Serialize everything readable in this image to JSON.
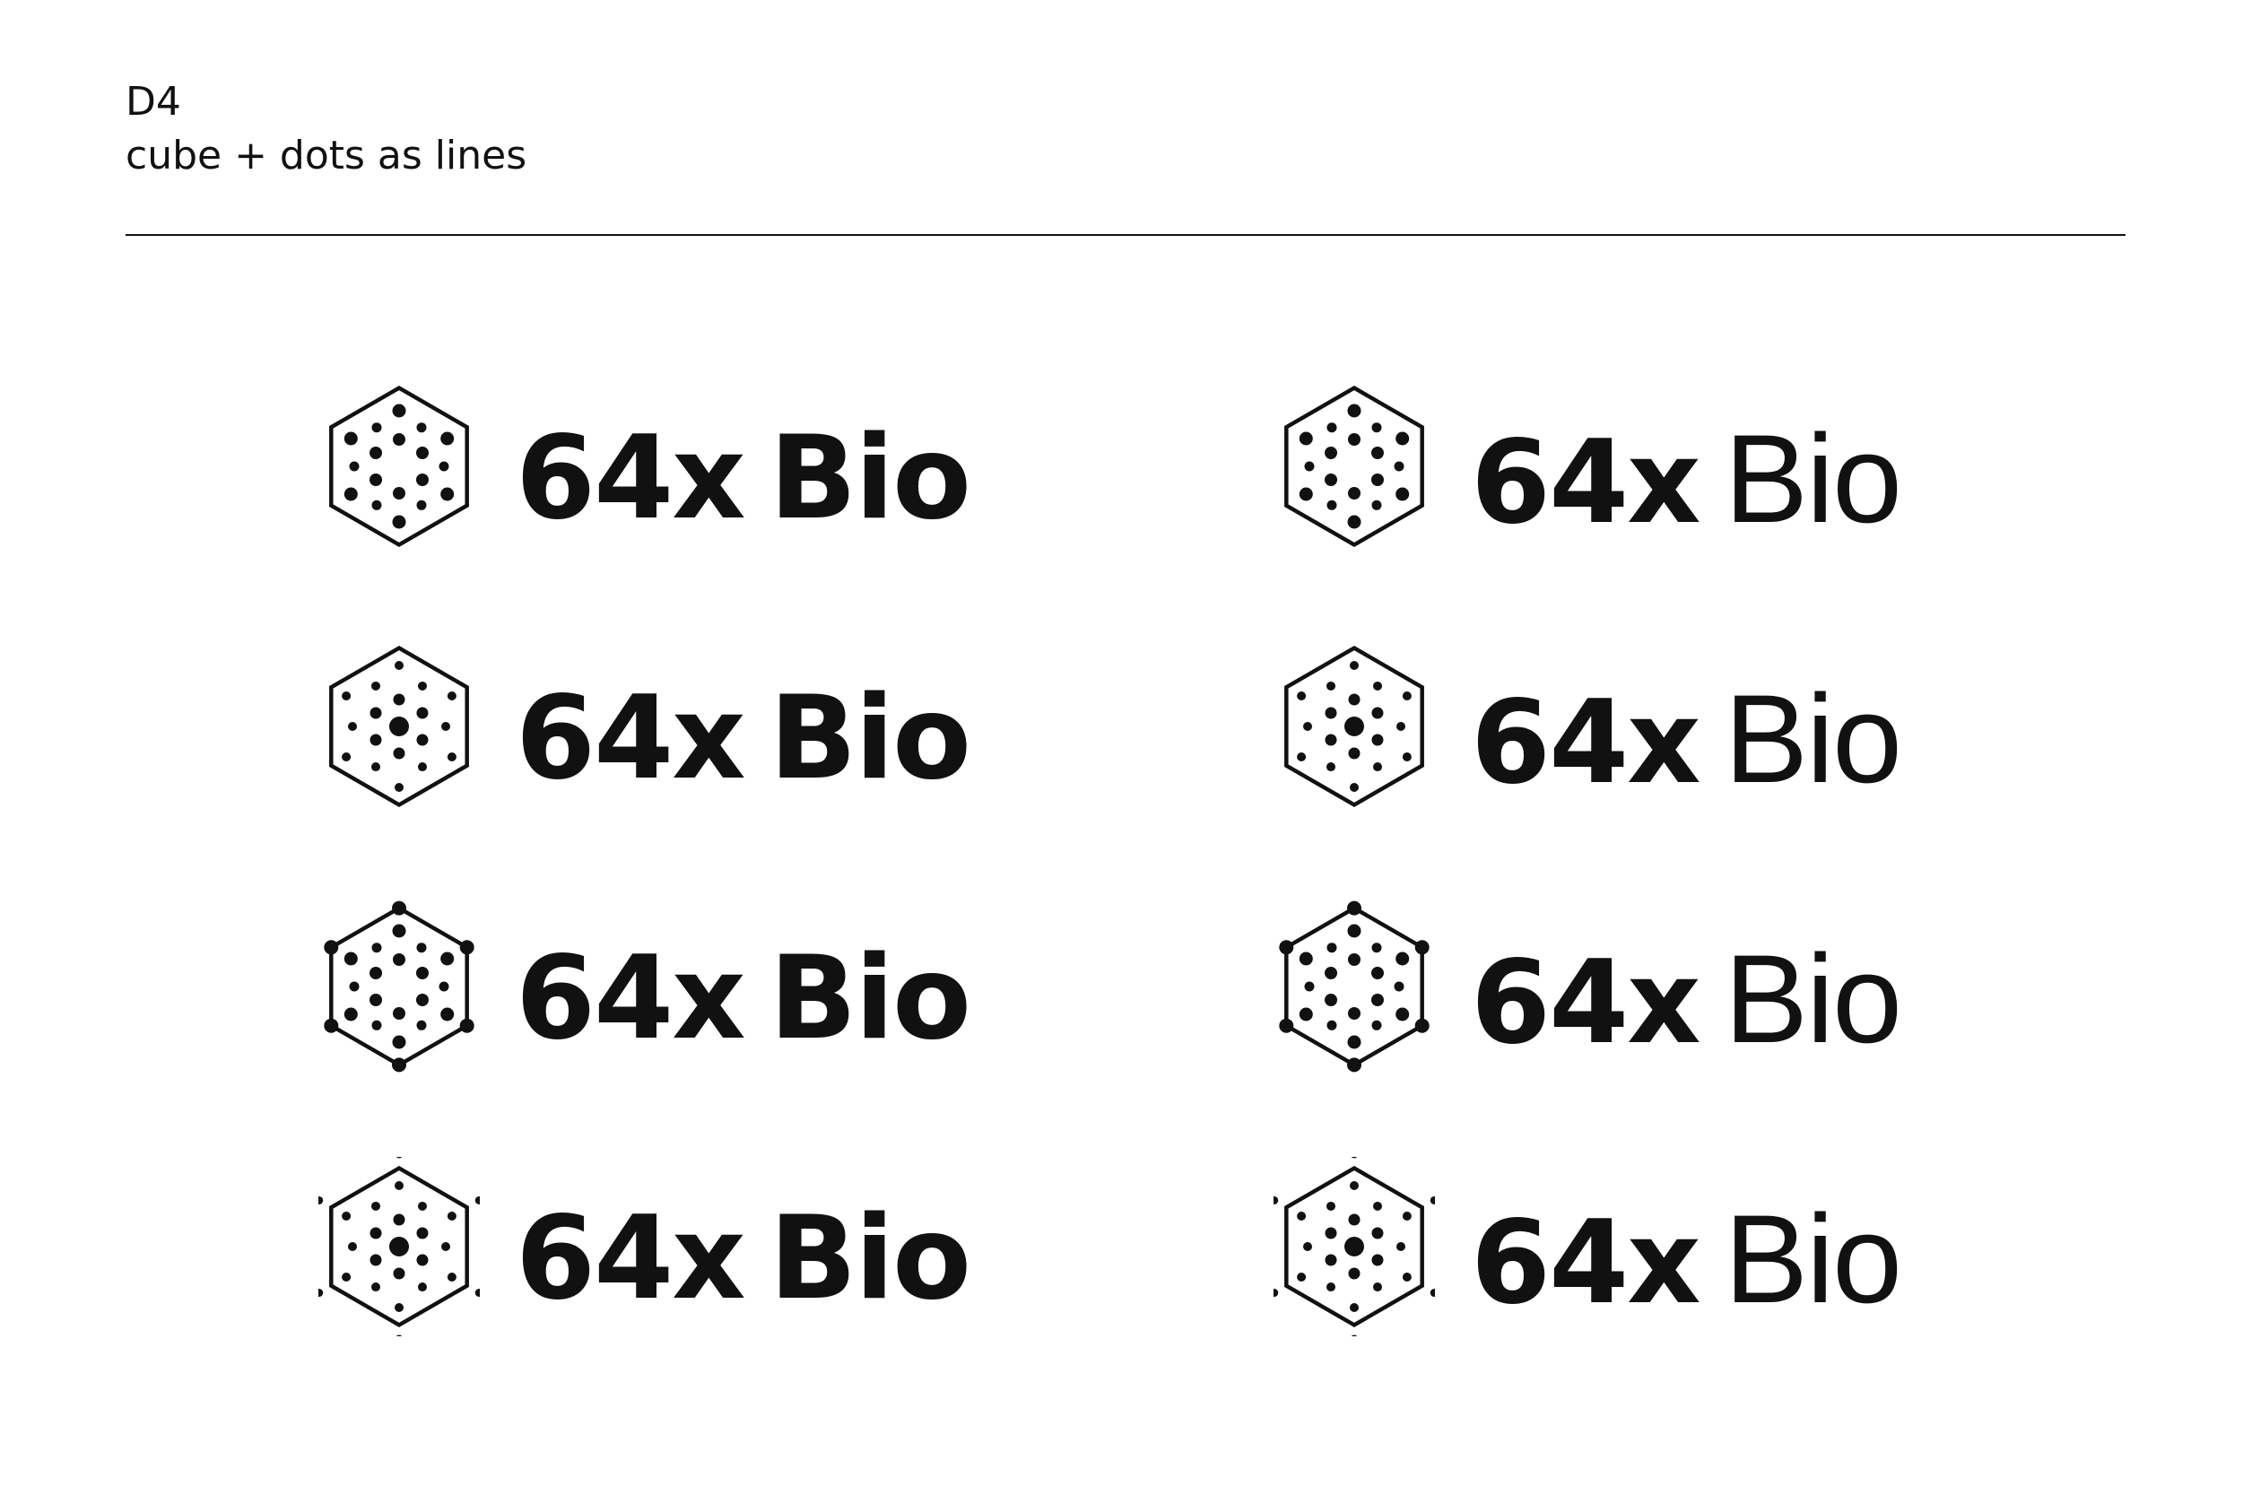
{
  "header": {
    "code": "D4",
    "subtitle": "cube + dots as lines"
  },
  "colors": {
    "ink": "#111111",
    "background": "#ffffff"
  },
  "wordmark": {
    "number": "64x",
    "name": "Bio"
  },
  "variants": [
    {
      "row": 1,
      "column": "left",
      "name_weight": "bold",
      "icon": "hexagon-dots-icon",
      "icon_style": "grid-dots"
    },
    {
      "row": 1,
      "column": "right",
      "name_weight": "light",
      "icon": "hexagon-dots-icon",
      "icon_style": "grid-dots"
    },
    {
      "row": 2,
      "column": "left",
      "name_weight": "bold",
      "icon": "hexagon-dots-icon",
      "icon_style": "radial-dots-center"
    },
    {
      "row": 2,
      "column": "right",
      "name_weight": "light",
      "icon": "hexagon-dots-icon",
      "icon_style": "radial-dots-center"
    },
    {
      "row": 3,
      "column": "left",
      "name_weight": "bold",
      "icon": "hexagon-dots-icon",
      "icon_style": "grid-dots-vertex-nodes"
    },
    {
      "row": 3,
      "column": "right",
      "name_weight": "light",
      "icon": "hexagon-dots-icon",
      "icon_style": "grid-dots-vertex-nodes"
    },
    {
      "row": 4,
      "column": "left",
      "name_weight": "bold",
      "icon": "hexagon-dots-icon",
      "icon_style": "radial-dots-outer-points"
    },
    {
      "row": 4,
      "column": "right",
      "name_weight": "light",
      "icon": "hexagon-dots-icon",
      "icon_style": "radial-dots-outer-points"
    }
  ]
}
